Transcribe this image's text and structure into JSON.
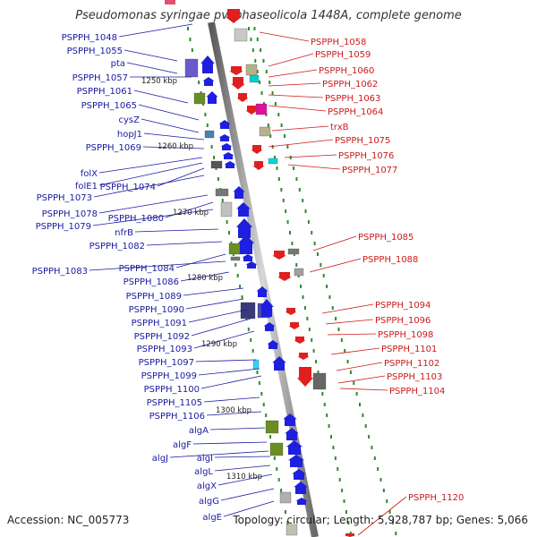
{
  "title": "Pseudomonas syringae pv. phaseolicola 1448A, complete genome",
  "footer": {
    "accession": "Accession: NC_005773",
    "summary": "Topology: circular; Length: 5,928,787 bp; Genes: 5,066"
  },
  "colors": {
    "left_label": "#1a1aa0",
    "right_label": "#cc1a1a",
    "backbone": "#8a8a8a",
    "dots": "#2e8b2e",
    "forward_arrow": "#1f1fe0",
    "reverse_arrow": "#e01f1f"
  },
  "scale_marks": [
    "1250 kbp",
    "1260 kbp",
    "1270 kbp",
    "1280 kbp",
    "1290 kbp",
    "1300 kbp",
    "1310 kbp"
  ],
  "left_labels": [
    "PSPPH_1048",
    "PSPPH_1055",
    "pta",
    "PSPPH_1057",
    "PSPPH_1061",
    "PSPPH_1065",
    "cysZ",
    "hopJ1",
    "PSPPH_1069",
    "folX",
    "folE1",
    "PSPPH_1074",
    "PSPPH_1073",
    "PSPPH_1078",
    "PSPPH_1080",
    "PSPPH_1079",
    "nfrB",
    "PSPPH_1082",
    "PSPPH_1084",
    "PSPPH_1083",
    "PSPPH_1086",
    "PSPPH_1089",
    "PSPPH_1090",
    "PSPPH_1091",
    "PSPPH_1092",
    "PSPPH_1093",
    "PSPPH_1097",
    "PSPPH_1099",
    "PSPPH_1100",
    "PSPPH_1105",
    "PSPPH_1106",
    "algA",
    "algF",
    "algJ",
    "algI",
    "algL",
    "algX",
    "algG",
    "algE"
  ],
  "right_labels": [
    "PSPPH_1058",
    "PSPPH_1059",
    "PSPPH_1060",
    "PSPPH_1062",
    "PSPPH_1063",
    "PSPPH_1064",
    "trxB",
    "PSPPH_1075",
    "PSPPH_1076",
    "PSPPH_1077",
    "PSPPH_1085",
    "PSPPH_1088",
    "PSPPH_1094",
    "PSPPH_1096",
    "PSPPH_1098",
    "PSPPH_1101",
    "PSPPH_1102",
    "PSPPH_1103",
    "PSPPH_1104",
    "PSPPH_1120"
  ]
}
